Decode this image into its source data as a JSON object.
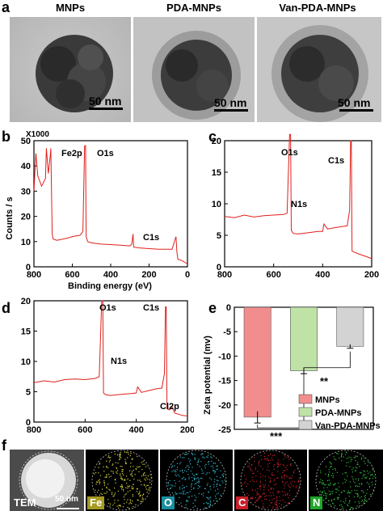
{
  "panels": {
    "a": "a",
    "b": "b",
    "c": "c",
    "d": "d",
    "e": "e",
    "f": "f"
  },
  "tem": {
    "titles": [
      "MNPs",
      "PDA-MNPs",
      "Van-PDA-MNPs"
    ],
    "scale_labels": [
      "50 nm",
      "50 nm",
      "50 nm"
    ]
  },
  "xps_b": {
    "multiplier": "X1000",
    "ylabel": "Counts / s",
    "xlabel": "Binding energy (eV)",
    "peaks": [
      "Fe2p",
      "O1s",
      "C1s"
    ]
  },
  "xps_c": {
    "peaks": [
      "O1s",
      "C1s",
      "N1s"
    ]
  },
  "xps_d": {
    "peaks": [
      "O1s",
      "C1s",
      "N1s",
      "Cl2p"
    ]
  },
  "zeta": {
    "ylabel": "Zeta potential (mv)",
    "sig_low": "**",
    "sig_high": "***"
  },
  "eds": {
    "tags": [
      "TEM",
      "Fe",
      "O",
      "C",
      "N"
    ],
    "scale_label": "50 nm"
  },
  "chart_data": [
    {
      "type": "line",
      "panel": "b",
      "xlabel": "Binding energy (eV)",
      "ylabel": "Counts / s",
      "xlim": [
        800,
        0
      ],
      "ylim": [
        0,
        50
      ],
      "xticks": [
        800,
        600,
        400,
        200,
        0
      ],
      "yticks": [
        0,
        10,
        20,
        30,
        40,
        50
      ],
      "x": [
        800,
        790,
        780,
        760,
        740,
        735,
        725,
        715,
        712,
        705,
        700,
        680,
        650,
        620,
        600,
        560,
        545,
        536,
        531,
        528,
        520,
        500,
        450,
        400,
        350,
        300,
        290,
        284,
        280,
        250,
        200,
        150,
        100,
        80,
        60,
        55,
        50,
        30,
        10,
        0
      ],
      "y": [
        30,
        45,
        36,
        32,
        35,
        47,
        37,
        44,
        47,
        13,
        11,
        10.5,
        11,
        11.5,
        12,
        12.5,
        14,
        48,
        48,
        12,
        10,
        9.5,
        9,
        8.8,
        8.6,
        8.3,
        9,
        13,
        7.8,
        7.5,
        7.2,
        7,
        7,
        7,
        12,
        6,
        3,
        2.5,
        1.6,
        1.2
      ]
    },
    {
      "type": "line",
      "panel": "c",
      "xlim": [
        800,
        200
      ],
      "ylim": [
        0,
        20
      ],
      "xticks": [
        800,
        600,
        400,
        200
      ],
      "yticks": [
        0,
        5,
        10,
        15,
        20
      ],
      "x": [
        800,
        760,
        720,
        680,
        640,
        600,
        560,
        545,
        535,
        531,
        528,
        520,
        500,
        460,
        420,
        400,
        395,
        380,
        350,
        320,
        300,
        290,
        286,
        283,
        280,
        270,
        250,
        220,
        200
      ],
      "y": [
        8,
        7.8,
        8.2,
        7.9,
        8.1,
        8.2,
        8.3,
        8.5,
        21,
        21,
        5.8,
        5.3,
        5.2,
        5.4,
        5.6,
        5.6,
        6.8,
        6,
        6.2,
        6.4,
        6.5,
        9,
        20,
        20,
        2.5,
        2.3,
        2,
        1.6,
        1.3
      ]
    },
    {
      "type": "line",
      "panel": "d",
      "xlim": [
        800,
        200
      ],
      "ylim": [
        0,
        20
      ],
      "xticks": [
        800,
        600,
        400,
        200
      ],
      "yticks": [
        0,
        5,
        10,
        15,
        20
      ],
      "x": [
        800,
        760,
        720,
        680,
        640,
        600,
        560,
        545,
        535,
        531,
        528,
        520,
        500,
        450,
        420,
        400,
        395,
        380,
        350,
        320,
        300,
        290,
        286,
        283,
        280,
        270,
        260,
        250,
        220,
        200
      ],
      "y": [
        6.5,
        6.8,
        6.6,
        7,
        7.1,
        7,
        7.2,
        7.5,
        20,
        20,
        4.8,
        4.5,
        4.4,
        4.6,
        4.7,
        4.8,
        5.8,
        4.9,
        5.2,
        5.5,
        5.6,
        8,
        19,
        19,
        2.2,
        2,
        2.5,
        1.5,
        1.1,
        1
      ]
    },
    {
      "type": "bar",
      "panel": "e",
      "ylabel": "Zeta potential (mv)",
      "ylim": [
        -25,
        0
      ],
      "yticks": [
        0,
        -5,
        -10,
        -15,
        -20,
        -25
      ],
      "categories": [
        "MNPs",
        "PDA-MNPs",
        "Van-PDA-MNPs"
      ],
      "values": [
        -22.5,
        -13,
        -8
      ],
      "errors": [
        1.2,
        0.6,
        0.4
      ],
      "colors": [
        "#f28d8d",
        "#bfe2a6",
        "#d3d3d3"
      ],
      "legend": [
        "MNPs",
        "PDA-MNPs",
        "Van-PDA-MNPs"
      ],
      "legend_position": "bottom-right"
    }
  ]
}
